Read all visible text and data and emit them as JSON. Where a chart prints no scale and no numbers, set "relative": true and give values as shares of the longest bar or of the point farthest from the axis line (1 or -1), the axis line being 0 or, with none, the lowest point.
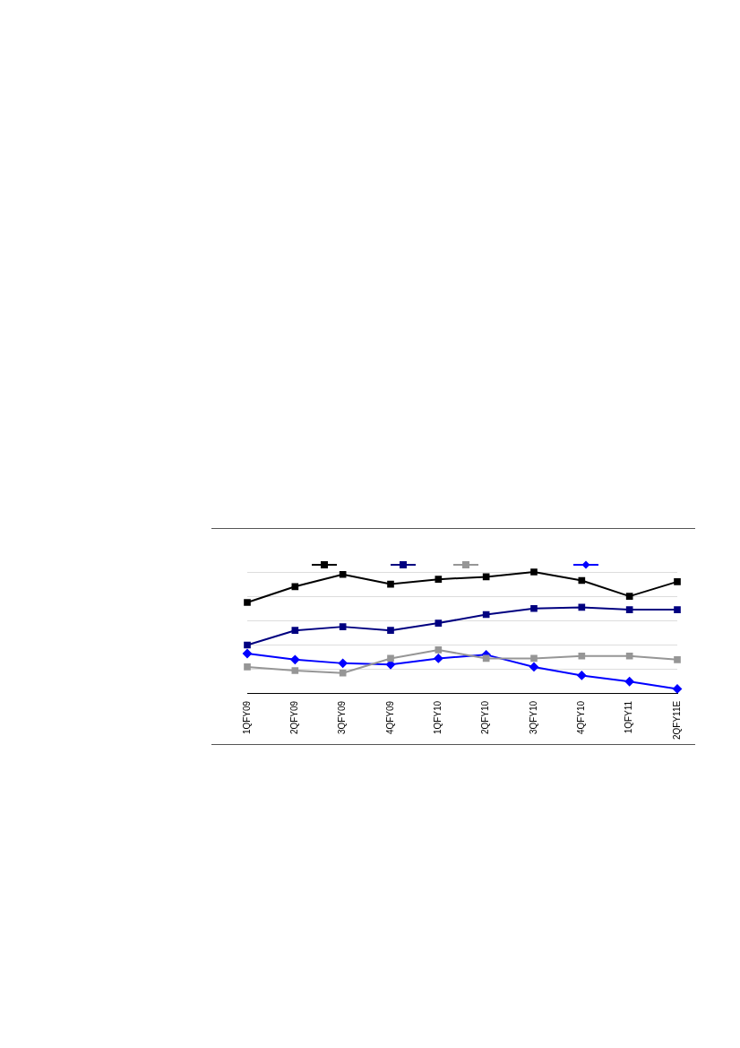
{
  "chart_data": {
    "type": "line",
    "relative": true,
    "grid": "y",
    "line_style": "solid",
    "categories": [
      "1QFY09",
      "2QFY09",
      "3QFY09",
      "4QFY09",
      "1QFY10",
      "2QFY10",
      "3QFY10",
      "4QFY10",
      "1QFY11",
      "2QFY11E"
    ],
    "series": [
      {
        "color": "#000000",
        "marker": "square",
        "values": [
          0.75,
          0.88,
          0.98,
          0.9,
          0.94,
          0.96,
          1,
          0.93,
          0.8,
          0.92
        ]
      },
      {
        "color": "#000080",
        "marker": "square",
        "values": [
          0.4,
          0.52,
          0.55,
          0.52,
          0.58,
          0.65,
          0.7,
          0.71,
          0.69,
          0.69
        ]
      },
      {
        "color": "#969696",
        "marker": "square",
        "values": [
          0.22,
          0.19,
          0.17,
          0.29,
          0.36,
          0.29,
          0.29,
          0.31,
          0.31,
          0.28
        ]
      },
      {
        "color": "#0000ff",
        "marker": "diamond",
        "values": [
          0.33,
          0.28,
          0.25,
          0.24,
          0.29,
          0.32,
          0.22,
          0.15,
          0.1,
          0.04
        ]
      }
    ]
  }
}
